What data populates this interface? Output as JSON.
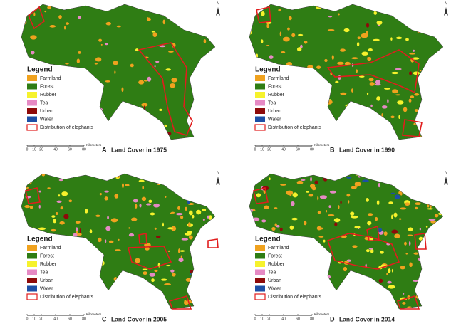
{
  "north_label": "N",
  "legend": {
    "title": "Legend",
    "items": [
      {
        "label": "Farmland",
        "color": "#f0a21e"
      },
      {
        "label": "Forest",
        "color": "#2f7d14"
      },
      {
        "label": "Rubber",
        "color": "#f6f22c"
      },
      {
        "label": "Tea",
        "color": "#e68ac4"
      },
      {
        "label": "Urban",
        "color": "#8e0a0a"
      },
      {
        "label": "Water",
        "color": "#1d4fa6"
      },
      {
        "label": "Distribution of elephants",
        "color": "#e11d1d",
        "outline": true
      }
    ]
  },
  "scale": {
    "ticks": [
      "0",
      "10",
      "20",
      "40",
      "60",
      "80"
    ],
    "unit": "Kilometers"
  },
  "panels": [
    {
      "letter": "A",
      "caption": "Land Cover in 1975"
    },
    {
      "letter": "B",
      "caption": "Land Cover in 1990"
    },
    {
      "letter": "C",
      "caption": "Land Cover in 2005"
    },
    {
      "letter": "D",
      "caption": "Land Cover in 2014"
    }
  ]
}
